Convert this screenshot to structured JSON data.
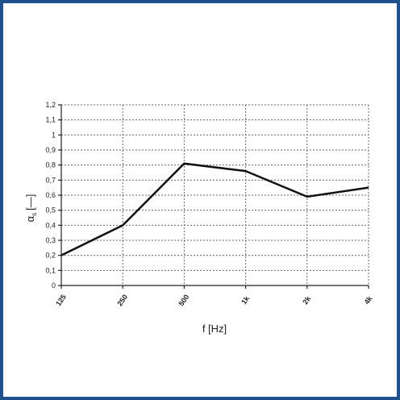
{
  "chart_data": {
    "type": "line",
    "categories": [
      "125",
      "250",
      "500",
      "1k",
      "2k",
      "4k"
    ],
    "series": [
      {
        "values": [
          0.2,
          0.4,
          0.81,
          0.76,
          0.59,
          0.65
        ]
      }
    ],
    "ytick_labels": [
      "0",
      "0,1",
      "0,2",
      "0,3",
      "0,4",
      "0,5",
      "0,6",
      "0,7",
      "0,8",
      "0,9",
      "1",
      "1,1",
      "1,2"
    ],
    "ylim": [
      0,
      1.2
    ],
    "ystep": 0.1,
    "xlabel": "f [Hz]",
    "ylabel_main": "α",
    "ylabel_sub": "s",
    "ylabel_unit": "[—]",
    "grid": true,
    "legend": "none",
    "colors": {
      "frame": "#1f4f8f",
      "line": "#111111"
    }
  }
}
